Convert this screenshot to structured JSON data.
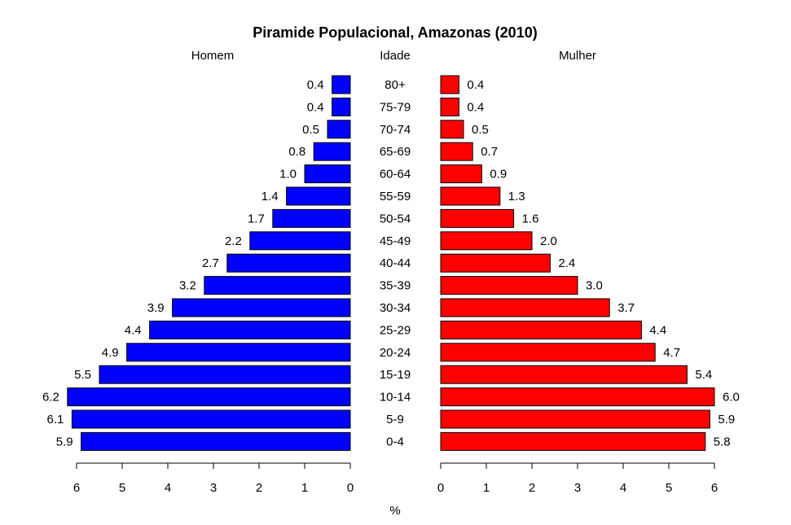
{
  "chart_data": {
    "type": "bar",
    "title": "Piramide Populacional, Amazonas (2010)",
    "left_header": "Homem",
    "center_header": "Idade",
    "right_header": "Mulher",
    "xlabel": "%",
    "categories": [
      "80+",
      "75-79",
      "70-74",
      "65-69",
      "60-64",
      "55-59",
      "50-54",
      "45-49",
      "40-44",
      "35-39",
      "30-34",
      "25-29",
      "20-24",
      "15-19",
      "10-14",
      "5-9",
      "0-4"
    ],
    "series": [
      {
        "name": "Homem",
        "color": "#0000ff",
        "values": [
          0.4,
          0.4,
          0.5,
          0.8,
          1.0,
          1.4,
          1.7,
          2.2,
          2.7,
          3.2,
          3.9,
          4.4,
          4.9,
          5.5,
          6.2,
          6.1,
          5.9
        ],
        "labels": [
          "0.4",
          "0.4",
          "0.5",
          "0.8",
          "1.0",
          "1.4",
          "1.7",
          "2.2",
          "2.7",
          "3.2",
          "3.9",
          "4.4",
          "4.9",
          "5.5",
          "6.2",
          "6.1",
          "5.9"
        ]
      },
      {
        "name": "Mulher",
        "color": "#ff0000",
        "values": [
          0.4,
          0.4,
          0.5,
          0.7,
          0.9,
          1.3,
          1.6,
          2.0,
          2.4,
          3.0,
          3.7,
          4.4,
          4.7,
          5.4,
          6.0,
          5.9,
          5.8
        ],
        "labels": [
          "0.4",
          "0.4",
          "0.5",
          "0.7",
          "0.9",
          "1.3",
          "1.6",
          "2.0",
          "2.4",
          "3.0",
          "3.7",
          "4.4",
          "4.7",
          "5.4",
          "6.0",
          "5.9",
          "5.8"
        ]
      }
    ],
    "xlim": [
      0,
      6
    ],
    "ticks": [
      "0",
      "1",
      "2",
      "3",
      "4",
      "5",
      "6"
    ],
    "grid": false,
    "legend": "none"
  }
}
